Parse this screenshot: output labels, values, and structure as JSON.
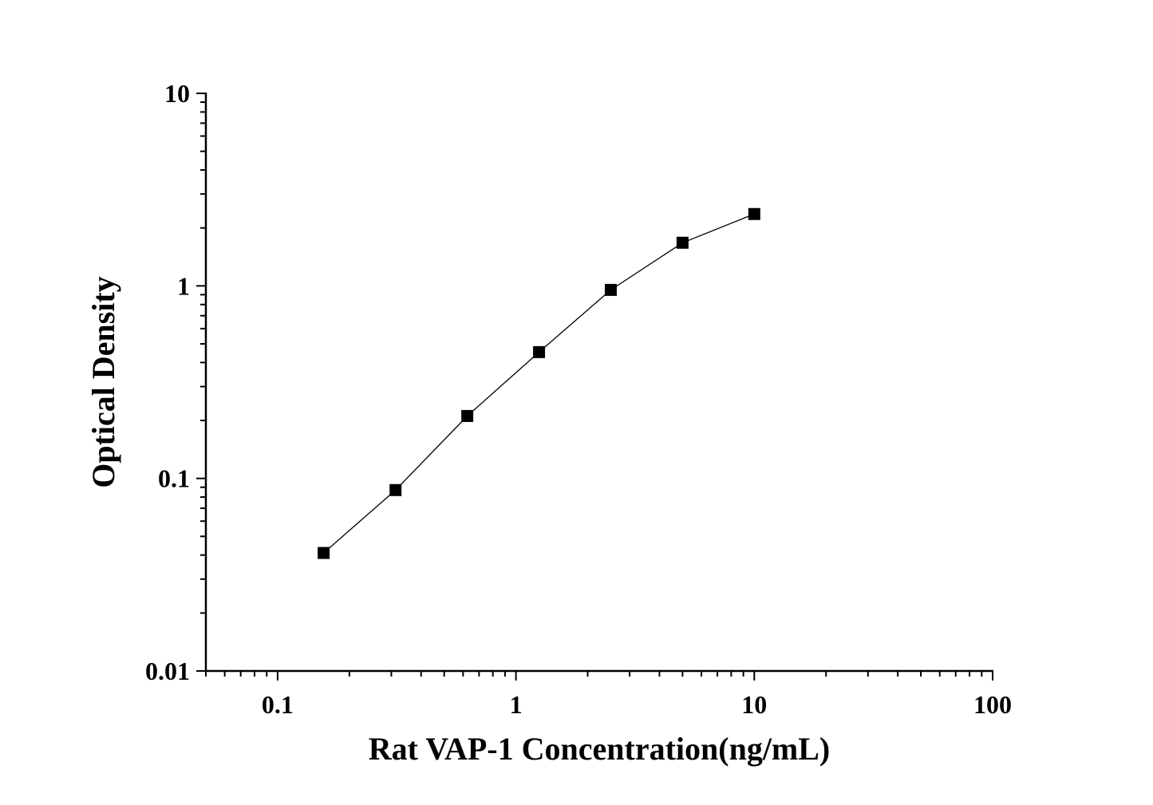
{
  "chart_data": {
    "type": "line",
    "title": "",
    "xlabel": "Rat VAP-1 Concentration(ng/mL)",
    "ylabel": "Optical Density",
    "xscale": "log",
    "yscale": "log",
    "xlim": [
      0.05,
      100
    ],
    "ylim": [
      0.01,
      10
    ],
    "xticks": [
      "0.1",
      "1",
      "10",
      "100"
    ],
    "yticks": [
      "0.01",
      "0.1",
      "1",
      "10"
    ],
    "grid": false,
    "marker": "square",
    "color": "#000000",
    "series": [
      {
        "x": [
          0.156,
          0.3125,
          0.625,
          1.25,
          2.5,
          5,
          10
        ],
        "y": [
          0.041,
          0.087,
          0.211,
          0.453,
          0.953,
          1.675,
          2.362
        ]
      }
    ]
  }
}
